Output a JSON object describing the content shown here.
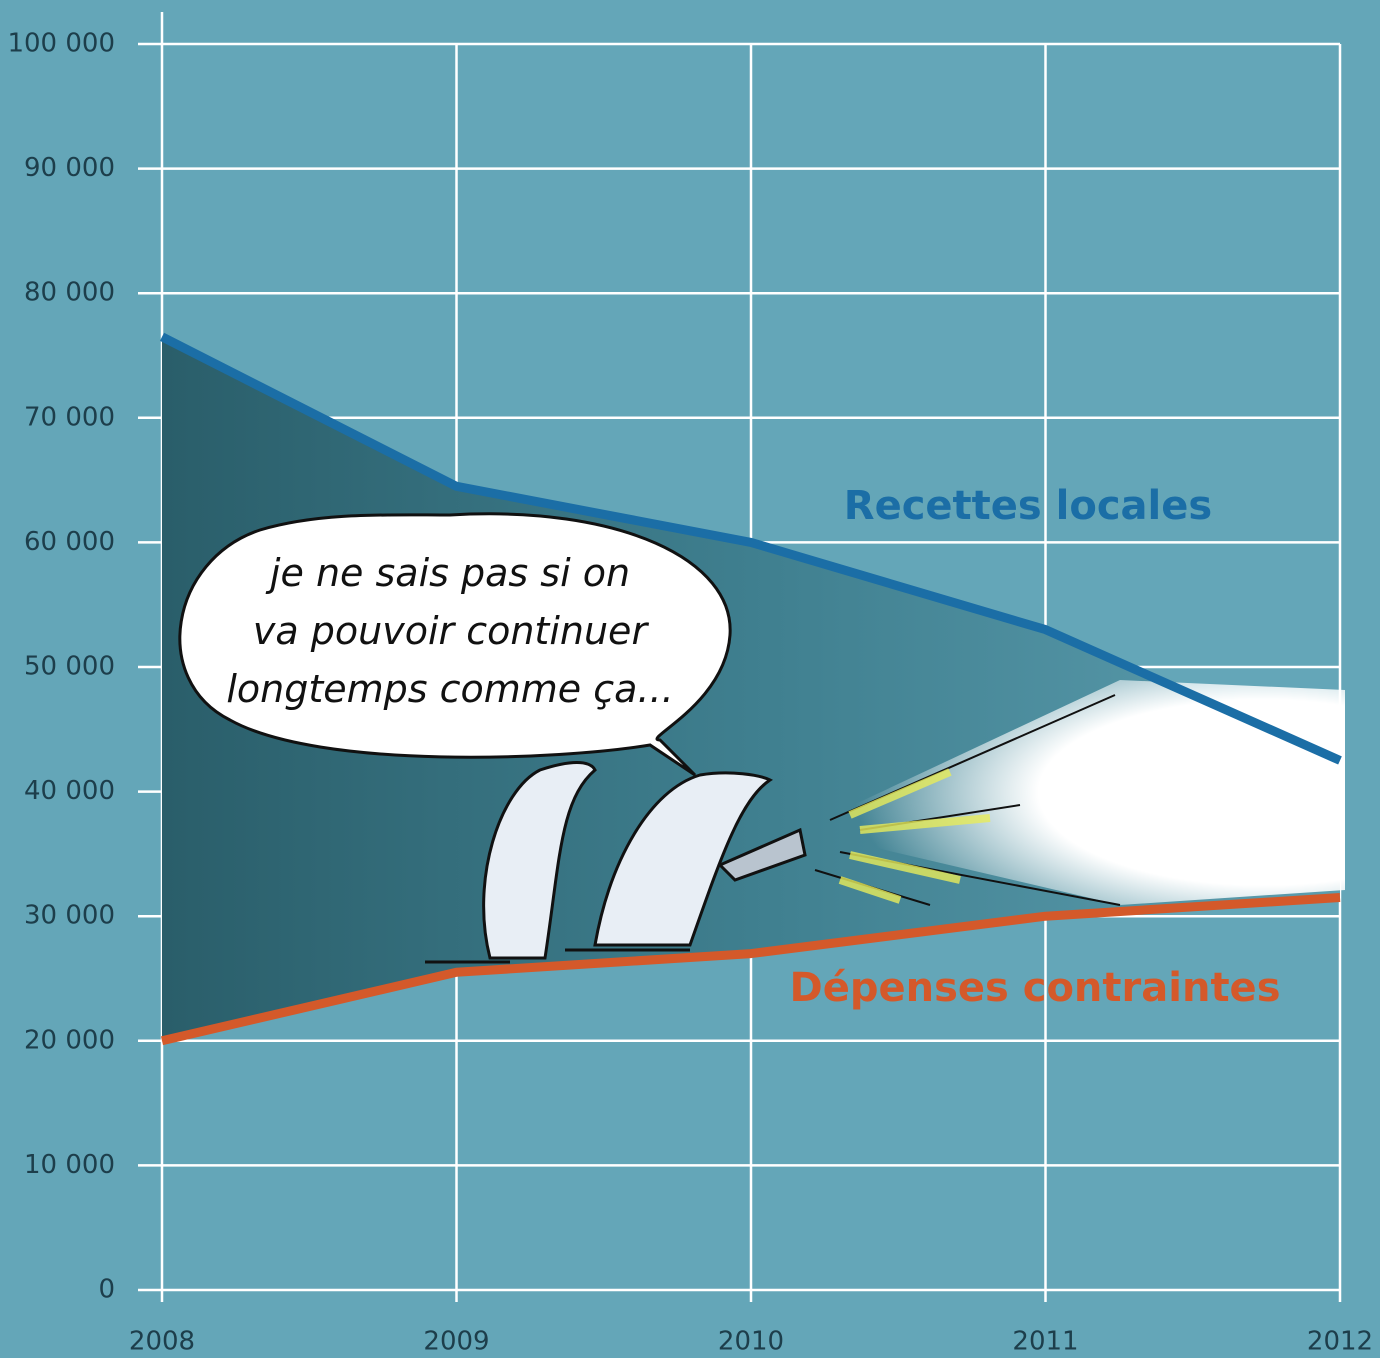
{
  "chart_data": {
    "type": "line",
    "x": [
      2008,
      2009,
      2010,
      2011,
      2012
    ],
    "xlim": [
      2008,
      2012
    ],
    "xticks": [
      2008,
      2009,
      2010,
      2011,
      2012
    ],
    "ylim": [
      0,
      100000
    ],
    "yticks": [
      0,
      {
        "value": 10000,
        "label": "10 000"
      },
      {
        "value": 20000,
        "label": "20 000"
      },
      {
        "value": 30000,
        "label": "30 000"
      },
      {
        "value": 40000,
        "label": "40 000"
      },
      {
        "value": 50000,
        "label": "50 000"
      },
      {
        "value": 60000,
        "label": "60 000"
      },
      {
        "value": 70000,
        "label": "70 000"
      },
      {
        "value": 80000,
        "label": "80 000"
      },
      {
        "value": 90000,
        "label": "90 000"
      },
      {
        "value": 100000,
        "label": "100 000"
      }
    ],
    "grid": true,
    "series": [
      {
        "name": "Recettes locales",
        "color": "#1b6ea6",
        "values": [
          76500,
          64500,
          60000,
          53000,
          42500
        ]
      },
      {
        "name": "Dépenses contraintes",
        "color": "#d4592a",
        "values": [
          20000,
          25500,
          27000,
          30000,
          31500
        ]
      }
    ],
    "annotation": [
      "je ne sais pas si on",
      "va pouvoir continuer",
      "longtemps comme ça..."
    ]
  }
}
